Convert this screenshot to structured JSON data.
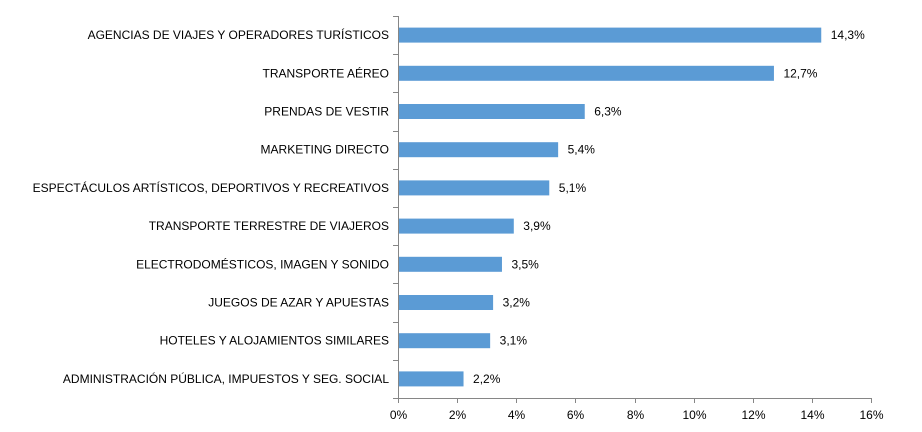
{
  "chart_data": {
    "type": "bar",
    "orientation": "horizontal",
    "title": "",
    "xlabel": "",
    "ylabel": "",
    "categories": [
      "AGENCIAS DE VIAJES Y OPERADORES TURÍSTICOS",
      "TRANSPORTE AÉREO",
      "PRENDAS DE VESTIR",
      "MARKETING DIRECTO",
      "ESPECTÁCULOS ARTÍSTICOS, DEPORTIVOS Y RECREATIVOS",
      "TRANSPORTE TERRESTRE DE VIAJEROS",
      "ELECTRODOMÉSTICOS,  IMAGEN Y SONIDO",
      "JUEGOS DE AZAR Y APUESTAS",
      "HOTELES  Y ALOJAMIENTOS SIMILARES",
      "ADMINISTRACIÓN PÚBLICA, IMPUESTOS Y SEG. SOCIAL"
    ],
    "values": [
      14.3,
      12.7,
      6.3,
      5.4,
      5.1,
      3.9,
      3.5,
      3.2,
      3.1,
      2.2
    ],
    "value_labels": [
      "14,3%",
      "12,7%",
      "6,3%",
      "5,4%",
      "5,1%",
      "3,9%",
      "3,5%",
      "3,2%",
      "3,1%",
      "2,2%"
    ],
    "xlim": [
      0,
      16
    ],
    "x_ticks": [
      0,
      2,
      4,
      6,
      8,
      10,
      12,
      14,
      16
    ],
    "x_tick_labels": [
      "0%",
      "2%",
      "4%",
      "6%",
      "8%",
      "10%",
      "12%",
      "14%",
      "16%"
    ],
    "grid": false,
    "legend": "none",
    "bar_color": "#5B9BD5"
  }
}
